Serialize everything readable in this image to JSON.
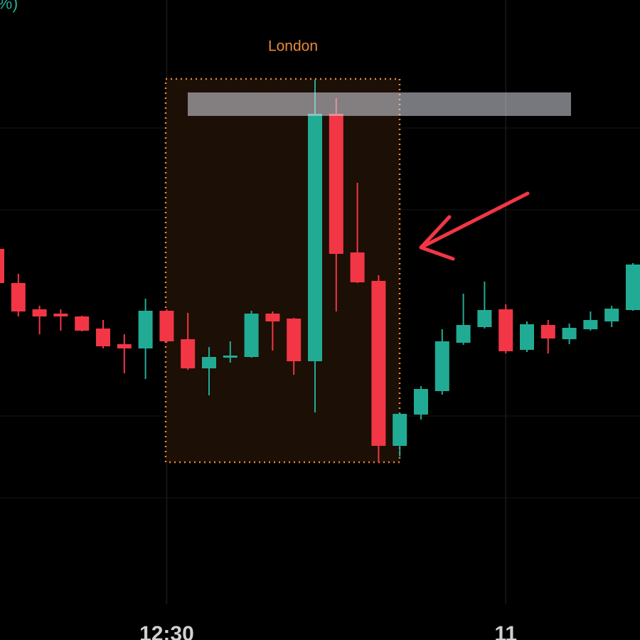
{
  "chart_data": {
    "type": "candlestick",
    "header_fragment": "%)",
    "session_label": "London",
    "up_color": "#22ab94",
    "down_color": "#f23645",
    "categories": [
      null,
      null,
      null,
      null,
      null,
      null,
      null,
      null,
      "12:30",
      null,
      null,
      null,
      null,
      null,
      null,
      null,
      null,
      null,
      null,
      null,
      null,
      null,
      null,
      null,
      "11",
      null,
      null,
      null,
      null,
      null,
      null
    ],
    "open": [
      550,
      502,
      465,
      459,
      455,
      438,
      416,
      410,
      463,
      423,
      382,
      397,
      398,
      459,
      452,
      392,
      740,
      545,
      505,
      273,
      317,
      350,
      418,
      440,
      465,
      408,
      443,
      423,
      437,
      448,
      464
    ],
    "high": [
      555,
      515,
      470,
      465,
      456,
      450,
      430,
      480,
      465,
      460,
      412,
      420,
      463,
      462,
      453,
      788,
      762,
      643,
      513,
      320,
      357,
      437,
      487,
      504,
      472,
      448,
      450,
      445,
      462,
      470,
      530
    ],
    "low": [
      500,
      455,
      430,
      435,
      434,
      410,
      375,
      367,
      418,
      380,
      344,
      390,
      397,
      407,
      373,
      320,
      462,
      502,
      250,
      258,
      310,
      345,
      415,
      438,
      403,
      405,
      403,
      416,
      435,
      440,
      463
    ],
    "close": [
      502,
      462,
      455,
      455,
      435,
      413,
      410,
      463,
      420,
      382,
      398,
      400,
      459,
      448,
      392,
      740,
      543,
      503,
      273,
      318,
      353,
      420,
      443,
      464,
      406,
      444,
      424,
      439,
      450,
      466,
      528
    ],
    "ylim": [
      0,
      900
    ]
  }
}
